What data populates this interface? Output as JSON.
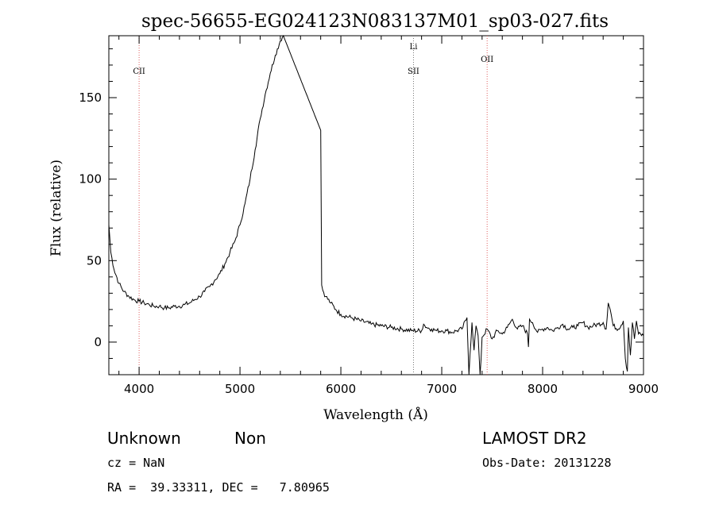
{
  "chart_data": {
    "type": "line",
    "title": "spec-56655-EG024123N083137M01_sp03-027.fits",
    "xlabel": "Wavelength (Å)",
    "ylabel": "Flux (relative)",
    "xlim": [
      3700,
      9000
    ],
    "ylim": [
      -20,
      188
    ],
    "x_ticks": [
      4000,
      5000,
      6000,
      7000,
      8000,
      9000
    ],
    "y_ticks": [
      0,
      50,
      100,
      150
    ],
    "grid": false,
    "spectral_lines": [
      {
        "name": "CII",
        "wavelength": 4000,
        "color": "#e06060",
        "label_row": 0
      },
      {
        "name": "SII",
        "wavelength": 6720,
        "color": "#777777",
        "label_row": 0
      },
      {
        "name": "Li",
        "wavelength": 6720,
        "color": "#777777",
        "label_row": 1
      },
      {
        "name": "OII",
        "wavelength": 7450,
        "color": "#e06060",
        "label_row": 2
      }
    ],
    "series": [
      {
        "x": [
          3700,
          3720,
          3750,
          3800,
          3850,
          3900,
          3950,
          4000,
          4050,
          4100,
          4150,
          4200,
          4250,
          4300,
          4350,
          4400,
          4450,
          4500,
          4550,
          4600,
          4650,
          4700,
          4750,
          4800,
          4850,
          4900,
          4950,
          5000,
          5050,
          5100,
          5150,
          5200,
          5250,
          5300,
          5350,
          5400,
          5430,
          5800,
          5810,
          5820,
          5850,
          5900,
          5950,
          6000,
          6100,
          6200,
          6300,
          6400,
          6500,
          6600,
          6700,
          6800,
          6820,
          6850,
          6900,
          6950,
          7000,
          7050,
          7100,
          7150,
          7200,
          7250,
          7270,
          7280,
          7300,
          7320,
          7340,
          7360,
          7380,
          7400,
          7450,
          7500,
          7550,
          7600,
          7650,
          7700,
          7750,
          7800,
          7850,
          7860,
          7870,
          7900,
          7950,
          8000,
          8050,
          8100,
          8150,
          8200,
          8250,
          8300,
          8350,
          8400,
          8450,
          8500,
          8550,
          8600,
          8630,
          8650,
          8670,
          8700,
          8750,
          8800,
          8820,
          8840,
          8850,
          8870,
          8890,
          8910,
          8930,
          8950,
          9000
        ],
        "y": [
          72,
          55,
          45,
          36,
          31,
          28,
          26,
          25,
          24,
          23,
          22,
          22,
          21,
          21,
          22,
          22,
          23,
          24,
          26,
          28,
          31,
          34,
          38,
          42,
          48,
          55,
          62,
          72,
          85,
          100,
          118,
          137,
          152,
          165,
          176,
          185,
          188,
          130,
          35,
          32,
          28,
          24,
          20,
          17,
          15,
          13,
          11,
          10,
          9,
          8,
          7,
          7,
          11,
          9,
          8,
          7,
          7,
          7,
          6,
          7,
          8,
          15,
          -20,
          -8,
          12,
          -5,
          10,
          4,
          -22,
          3,
          8,
          2,
          7,
          5,
          9,
          14,
          8,
          10,
          5,
          -3,
          14,
          12,
          6,
          8,
          9,
          7,
          9,
          11,
          8,
          9,
          10,
          12,
          9,
          10,
          11,
          12,
          8,
          24,
          20,
          10,
          8,
          13,
          -10,
          -18,
          9,
          -8,
          12,
          2,
          13,
          5,
          4
        ]
      }
    ]
  },
  "info": {
    "class_label": "Unknown",
    "subclass_label": "Non",
    "survey_label": "LAMOST DR2",
    "cz_text": "cz = NaN",
    "obsdate_text": "Obs-Date: 20131228",
    "radec_text": "RA =  39.33311, DEC =   7.80965"
  }
}
